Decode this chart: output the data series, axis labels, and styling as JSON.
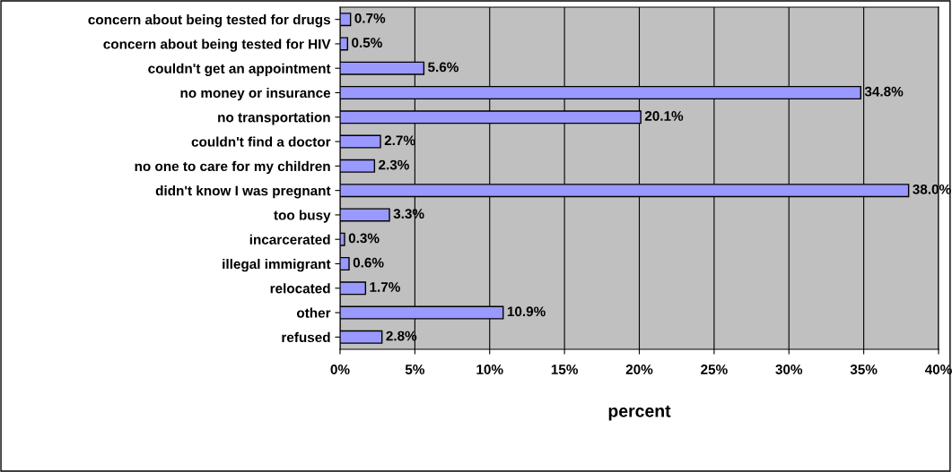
{
  "chart_data": {
    "type": "bar",
    "orientation": "horizontal",
    "xlabel": "percent",
    "categories": [
      "concern about being tested for drugs",
      "concern about being tested for HIV",
      "couldn't get an appointment",
      "no money or insurance",
      "no transportation",
      "couldn't find a doctor",
      "no one to care for my children",
      "didn't know I was pregnant",
      "too busy",
      "incarcerated",
      "illegal immigrant",
      "relocated",
      "other",
      "refused"
    ],
    "values": [
      0.7,
      0.5,
      5.6,
      34.8,
      20.1,
      2.7,
      2.3,
      38.0,
      3.3,
      0.3,
      0.6,
      1.7,
      10.9,
      2.8
    ],
    "value_labels": [
      "0.7%",
      "0.5%",
      "5.6%",
      "34.8%",
      "20.1%",
      "2.7%",
      "2.3%",
      "38.0%",
      "3.3%",
      "0.3%",
      "0.6%",
      "1.7%",
      "10.9%",
      "2.8%"
    ],
    "color": "#9999ff",
    "xlim": [
      0,
      40
    ],
    "xticks": [
      {
        "value": 0,
        "label": "0%"
      },
      {
        "value": 5,
        "label": "5%"
      },
      {
        "value": 10,
        "label": "10%"
      },
      {
        "value": 15,
        "label": "15%"
      },
      {
        "value": 20,
        "label": "20%"
      },
      {
        "value": 25,
        "label": "25%"
      },
      {
        "value": 30,
        "label": "30%"
      },
      {
        "value": 35,
        "label": "35%"
      },
      {
        "value": 40,
        "label": "40%"
      }
    ],
    "grid": "x"
  }
}
